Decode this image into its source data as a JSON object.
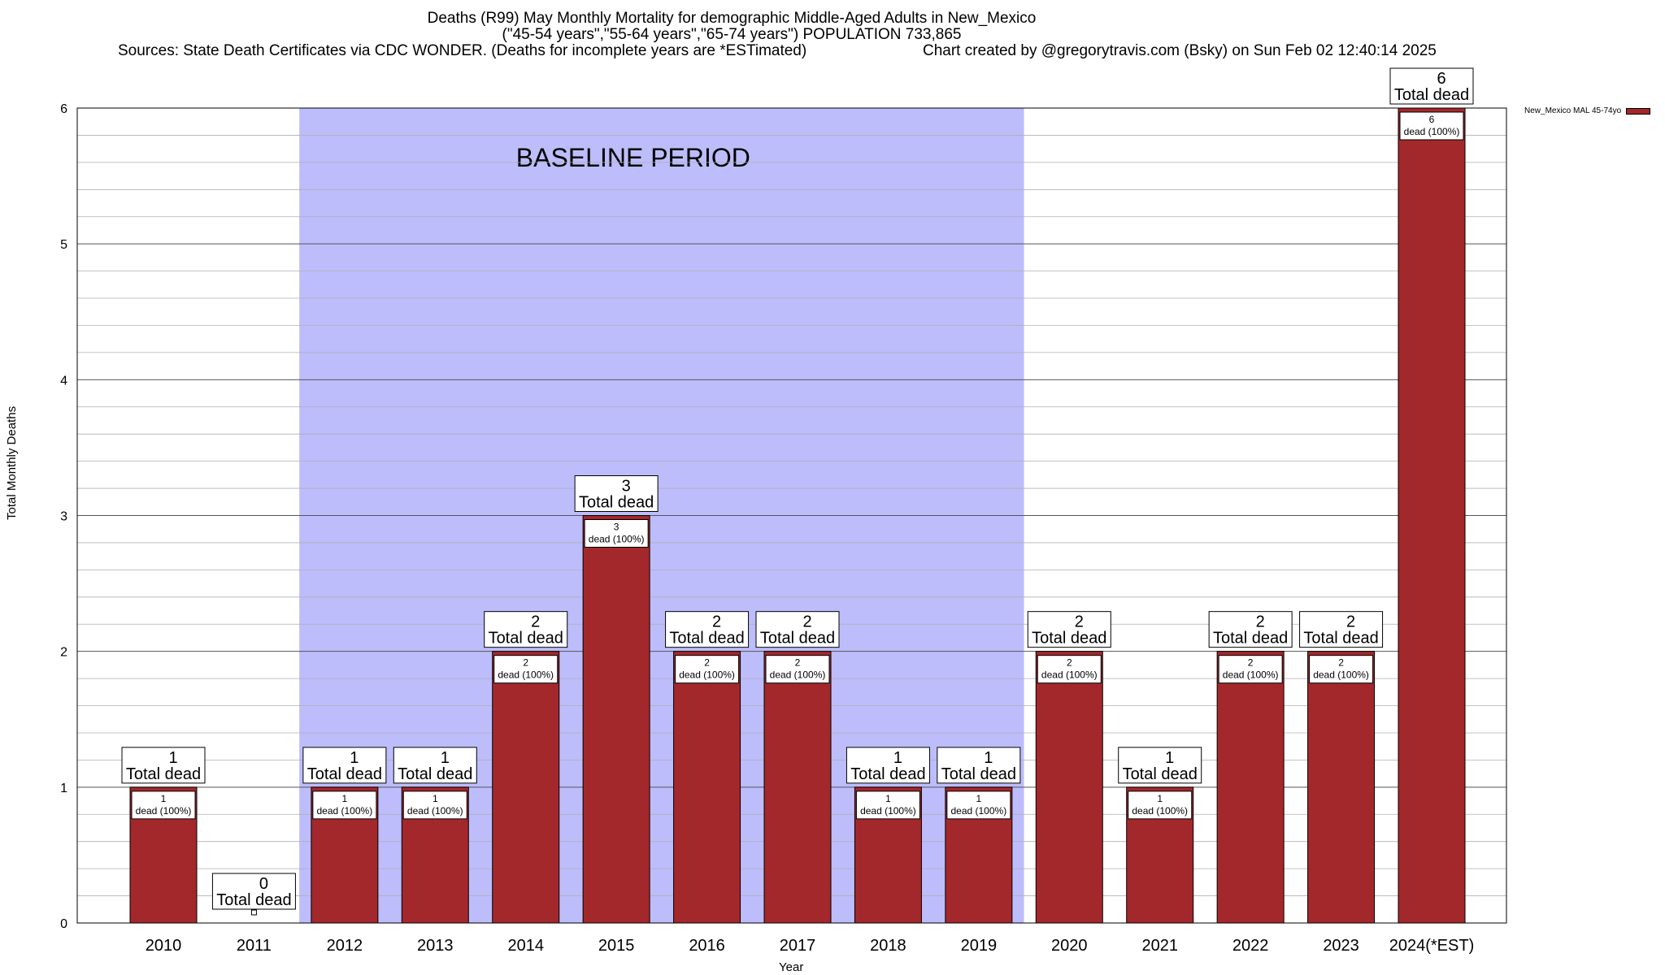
{
  "title": {
    "line1": "Deaths (R99) May Monthly Mortality for demographic Middle-Aged Adults in New_Mexico",
    "line2": "(\"45-54 years\",\"55-64 years\",\"65-74 years\") POPULATION 733,865",
    "line3_left": "Sources: State Death Certificates via CDC WONDER. (Deaths for incomplete years are *ESTimated)",
    "line3_right": "Chart created by @gregorytravis.com (Bsky) on Sun Feb 02 12:40:14 2025"
  },
  "colors": {
    "bar": "#a3282b",
    "baseline_band": "#bdbdfc",
    "grid": "#b0b0b0"
  },
  "chart_data": {
    "type": "bar",
    "xlabel": "Year",
    "ylabel": "Total Monthly Deaths",
    "ylim": [
      0,
      6
    ],
    "yticks": [
      0,
      1,
      2,
      3,
      4,
      5,
      6
    ],
    "grid": true,
    "legend_position": "top-right",
    "categories": [
      "2010",
      "2011",
      "2012",
      "2013",
      "2014",
      "2015",
      "2016",
      "2017",
      "2018",
      "2019",
      "2020",
      "2021",
      "2022",
      "2023",
      "2024(*EST)"
    ],
    "series": [
      {
        "name": "New_Mexico MAL 45-74yo",
        "values": [
          1,
          0,
          1,
          1,
          2,
          3,
          2,
          2,
          1,
          1,
          2,
          1,
          2,
          2,
          6
        ]
      }
    ],
    "total_label": "Total dead",
    "inner_label": "dead (100%)",
    "baseline_period": {
      "label": "BASELINE PERIOD",
      "start": "2012",
      "end": "2019"
    }
  }
}
